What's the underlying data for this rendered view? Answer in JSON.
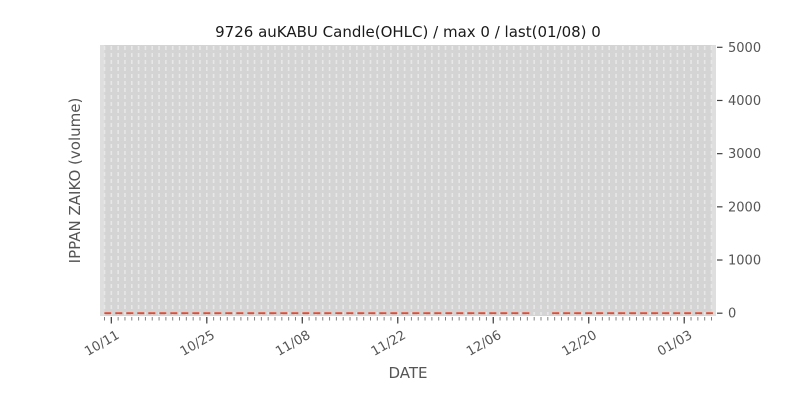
{
  "chart_data": {
    "type": "line",
    "title": "9726 auKABU Candle(OHLC) / max 0 / last(01/08) 0",
    "xlabel": "DATE",
    "ylabel": "IPPAN ZAIKO (volume)",
    "x_tick_labels": [
      "10/11",
      "10/25",
      "11/08",
      "11/22",
      "12/06",
      "12/20",
      "01/03"
    ],
    "x_tick_day_indices": [
      1,
      15,
      29,
      43,
      57,
      71,
      85
    ],
    "num_days": 90,
    "x_minor_tick_every_day": true,
    "y_tick_labels": [
      "0",
      "1000",
      "2000",
      "3000",
      "4000",
      "5000"
    ],
    "y_tick_values": [
      0,
      1000,
      2000,
      3000,
      4000,
      5000
    ],
    "ylim": [
      0,
      5000
    ],
    "y_axis_side": "right",
    "grid": "vertical-dashed-daily",
    "legend": "none",
    "series": [
      {
        "name": "IPPAN ZAIKO volume",
        "constant_value": 0,
        "max": 0,
        "last_date": "01/08",
        "last_value": 0,
        "linestyle": "dashed",
        "color": "#e24a33",
        "segments_frac": [
          [
            0.007,
            0.703
          ],
          [
            0.734,
            0.995
          ]
        ],
        "gap_note": "no data mid-December (red zero-line broken)"
      }
    ],
    "colors": {
      "plot_bg": "#d4d4d4",
      "grid_line": "#e7e7e7",
      "grid_edge": "#dedede",
      "tick_major": "#404040",
      "tick_minor": "#808080",
      "text_gray": "#555555",
      "title_text": "#1a1a1a",
      "figure_bg": "#ffffff"
    }
  }
}
